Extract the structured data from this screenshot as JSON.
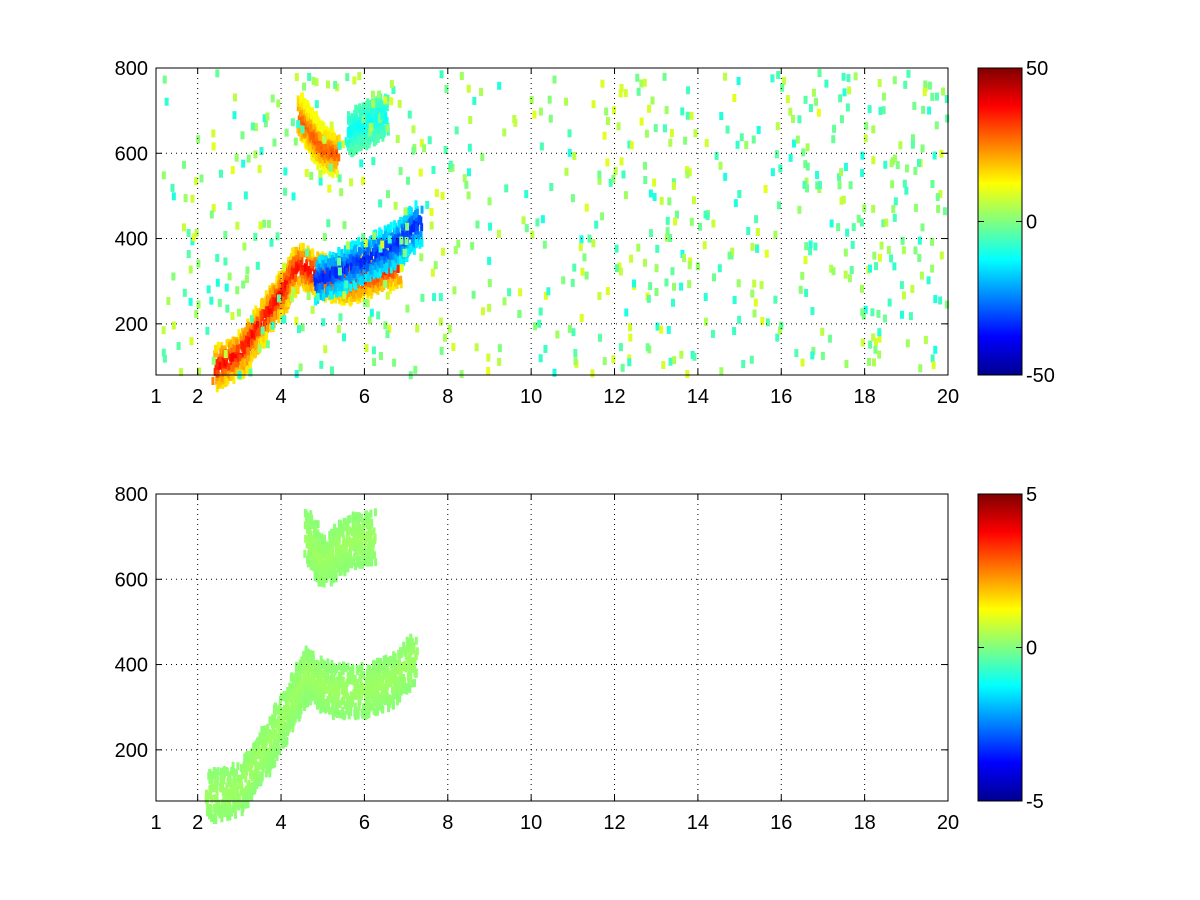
{
  "chart_data": [
    {
      "type": "heatmap",
      "title": "",
      "xlabel": "",
      "ylabel": "",
      "xlim": [
        1,
        20
      ],
      "ylim": [
        80,
        800
      ],
      "xticks": [
        1,
        2,
        4,
        6,
        8,
        10,
        12,
        14,
        16,
        18,
        20
      ],
      "yticks": [
        200,
        400,
        600,
        800
      ],
      "grid": true,
      "colormap": "jet",
      "clim": [
        -50,
        50
      ],
      "colorbar_ticks": [
        -50,
        0,
        50
      ],
      "features": [
        {
          "name": "lower ridge",
          "points": [
            [
              2.4,
              95
            ],
            [
              3.0,
              130
            ],
            [
              3.5,
              200
            ],
            [
              4.0,
              270
            ],
            [
              4.4,
              340
            ],
            [
              5.0,
              310
            ],
            [
              5.6,
              300
            ],
            [
              6.2,
              320
            ],
            [
              6.8,
              340
            ]
          ],
          "value": 38
        },
        {
          "name": "lower ridge negative",
          "points": [
            [
              4.8,
              300
            ],
            [
              5.5,
              330
            ],
            [
              6.2,
              360
            ],
            [
              6.8,
              390
            ],
            [
              7.3,
              440
            ]
          ],
          "value": -35
        },
        {
          "name": "upper ridge",
          "points": [
            [
              4.4,
              690
            ],
            [
              4.7,
              650
            ],
            [
              5.0,
              610
            ],
            [
              5.3,
              600
            ]
          ],
          "value": 30
        },
        {
          "name": "upper ridge negative",
          "points": [
            [
              5.6,
              650
            ],
            [
              6.0,
              670
            ],
            [
              6.5,
              690
            ]
          ],
          "value": -12
        }
      ]
    },
    {
      "type": "heatmap",
      "title": "",
      "xlabel": "",
      "ylabel": "",
      "xlim": [
        1,
        20
      ],
      "ylim": [
        80,
        800
      ],
      "xticks": [
        1,
        2,
        4,
        6,
        8,
        10,
        12,
        14,
        16,
        18,
        20
      ],
      "yticks": [
        200,
        400,
        600,
        800
      ],
      "grid": true,
      "colormap": "jet",
      "clim": [
        -5,
        5
      ],
      "colorbar_ticks": [
        -5,
        0,
        5
      ],
      "features": [
        {
          "name": "lower region",
          "points": [
            [
              2.2,
              90
            ],
            [
              3.0,
              110
            ],
            [
              3.6,
              200
            ],
            [
              4.2,
              300
            ],
            [
              4.6,
              380
            ],
            [
              5.2,
              340
            ],
            [
              6.0,
              340
            ],
            [
              6.6,
              360
            ],
            [
              7.2,
              420
            ]
          ],
          "value": 0.3
        },
        {
          "name": "upper region",
          "points": [
            [
              4.6,
              700
            ],
            [
              5.0,
              640
            ],
            [
              5.6,
              690
            ],
            [
              6.2,
              700
            ]
          ],
          "value": 0.3
        }
      ]
    }
  ]
}
